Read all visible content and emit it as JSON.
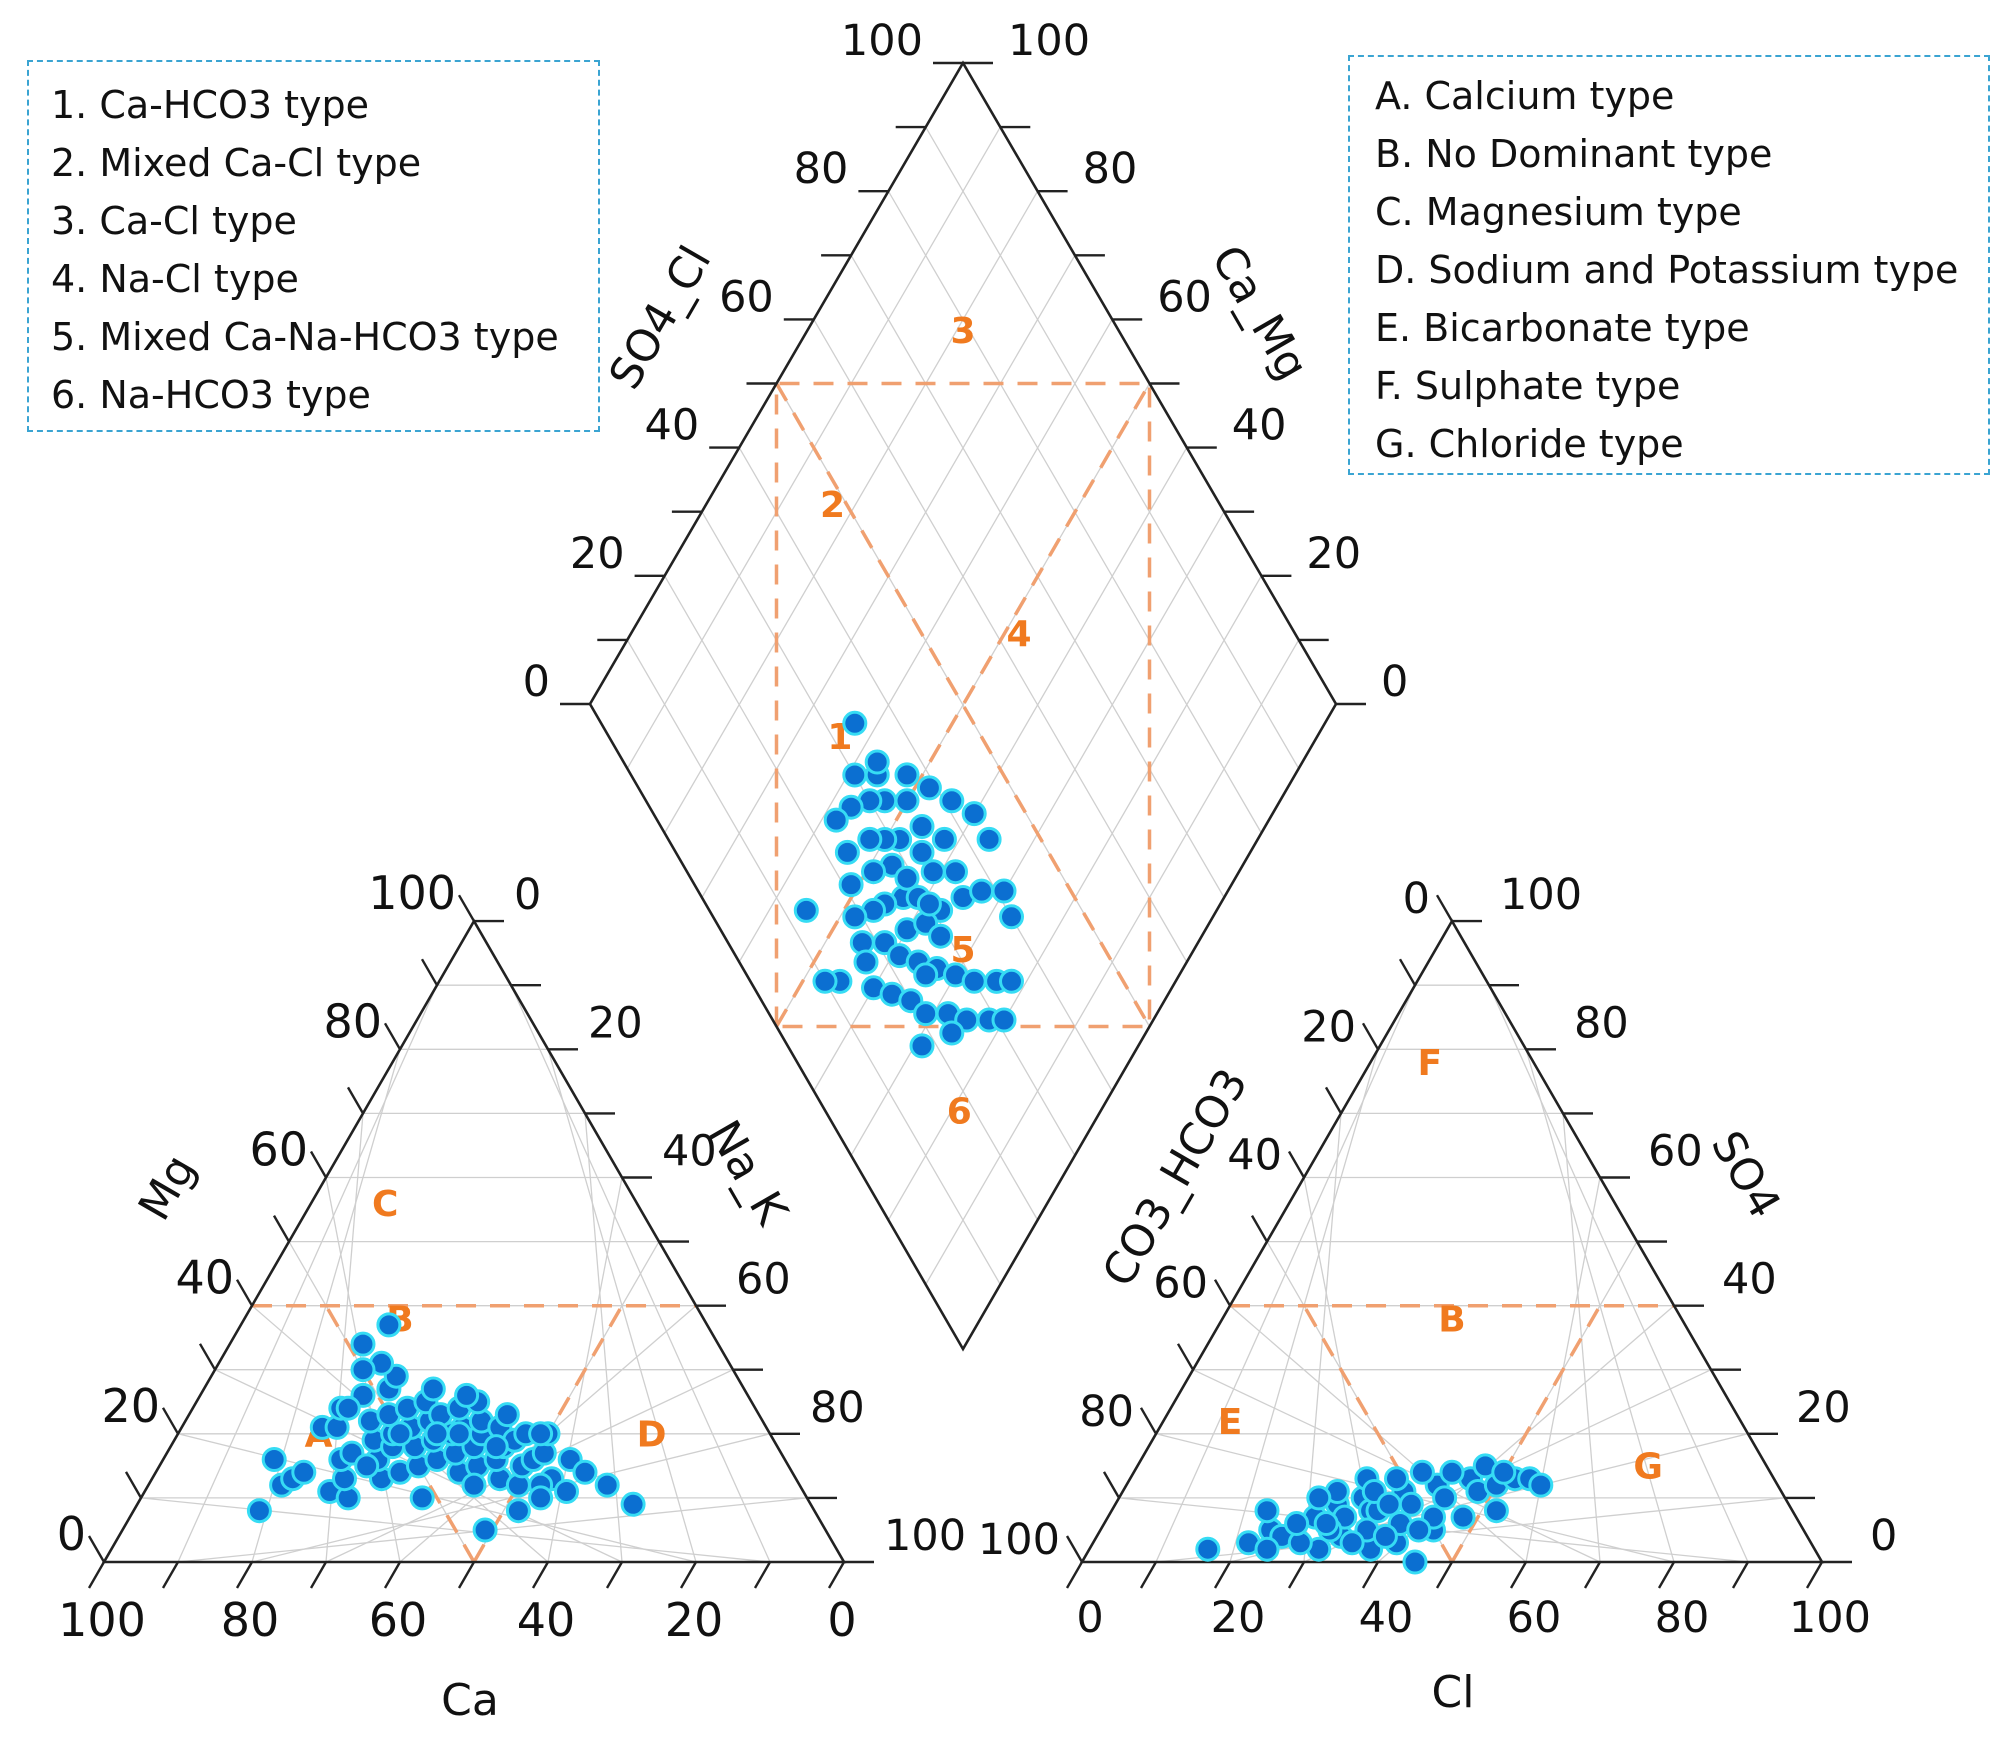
{
  "chart_data": {
    "type": "scatter",
    "subtype": "piper-diagram",
    "marker_color": "#0b6fd1",
    "marker_edge_color": "#36dcf4",
    "zone_line_color": "#f0a070",
    "zone_label_color": "#f07a1f",
    "legend_border_color": "#3aa4d2",
    "legend_hydrochemical": [
      "1. Ca-HCO3 type",
      "2. Mixed Ca-Cl type",
      "3. Ca-Cl type",
      "4. Na-Cl type",
      "5. Mixed Ca-Na-HCO3 type",
      "6. Na-HCO3 type"
    ],
    "legend_water_type": [
      "A. Calcium type",
      "B. No Dominant type",
      "C. Magnesium type",
      "D. Sodium and Potassium type",
      "E. Bicarbonate type",
      "F. Sulphate type",
      "G. Chloride type"
    ],
    "cation_triangle": {
      "axes": {
        "left": "Mg",
        "right": "Na_K",
        "bottom": "Ca"
      },
      "left_ticks": [
        "0",
        "20",
        "40",
        "60",
        "80",
        "100"
      ],
      "right_ticks": [
        "0",
        "20",
        "40",
        "60",
        "80",
        "100"
      ],
      "bottom_ticks": [
        "100",
        "80",
        "60",
        "40",
        "20",
        "0"
      ],
      "zone_labels": [
        "A",
        "B",
        "C",
        "D"
      ],
      "points": [
        [
          75,
          8
        ],
        [
          70,
          12
        ],
        [
          69,
          16
        ],
        [
          68,
          13
        ],
        [
          66,
          14
        ],
        [
          64,
          11
        ],
        [
          62,
          10
        ],
        [
          61,
          13
        ],
        [
          60,
          16
        ],
        [
          60,
          21
        ],
        [
          58,
          17
        ],
        [
          58,
          21
        ],
        [
          56,
          24
        ],
        [
          56,
          13
        ],
        [
          55,
          16
        ],
        [
          54,
          19
        ],
        [
          53,
          22
        ],
        [
          53,
          14
        ],
        [
          52,
          18
        ],
        [
          52,
          26
        ],
        [
          51,
          20
        ],
        [
          50,
          23
        ],
        [
          50,
          15
        ],
        [
          49,
          18
        ],
        [
          48,
          21
        ],
        [
          48,
          27
        ],
        [
          47,
          24
        ],
        [
          47,
          16
        ],
        [
          46,
          19
        ],
        [
          46,
          29
        ],
        [
          45,
          22
        ],
        [
          45,
          14
        ],
        [
          44,
          25
        ],
        [
          44,
          17
        ],
        [
          43,
          20
        ],
        [
          43,
          23
        ],
        [
          42,
          15
        ],
        [
          42,
          27
        ],
        [
          41,
          18
        ],
        [
          41,
          21
        ],
        [
          40,
          24
        ],
        [
          40,
          13
        ],
        [
          39,
          16
        ],
        [
          39,
          20
        ],
        [
          38,
          22
        ],
        [
          38,
          12
        ],
        [
          37,
          18
        ],
        [
          37,
          25
        ],
        [
          36,
          15
        ],
        [
          36,
          21
        ],
        [
          35,
          19
        ],
        [
          34,
          16
        ],
        [
          34,
          23
        ],
        [
          33,
          13
        ],
        [
          33,
          20
        ],
        [
          32,
          17
        ],
        [
          32,
          11
        ],
        [
          30,
          20
        ],
        [
          29,
          16
        ],
        [
          28,
          14
        ],
        [
          26,
          12
        ],
        [
          24,
          9
        ],
        [
          48,
          34
        ],
        [
          47,
          31
        ],
        [
          43,
          37
        ],
        [
          50,
          30
        ],
        [
          55,
          24
        ],
        [
          45,
          20
        ],
        [
          50,
          20
        ],
        [
          42,
          20
        ],
        [
          38,
          18
        ],
        [
          44,
          12
        ],
        [
          35,
          12
        ],
        [
          52,
          10
        ],
        [
          46,
          5
        ],
        [
          40,
          8
        ],
        [
          38,
          26
        ],
        [
          31,
          20
        ],
        [
          36,
          10
        ],
        [
          57,
          15
        ]
      ]
    },
    "anion_triangle": {
      "axes": {
        "left": "CO3_HCO3",
        "right": "SO4",
        "bottom": "Cl"
      },
      "left_ticks": [
        "100",
        "80",
        "60",
        "40",
        "20",
        "0"
      ],
      "right_ticks": [
        "0",
        "20",
        "40",
        "60",
        "80",
        "100"
      ],
      "bottom_ticks": [
        "0",
        "20",
        "40",
        "60",
        "80",
        "100"
      ],
      "zone_labels": [
        "E",
        "F",
        "G",
        "B"
      ],
      "points": [
        [
          16,
          2
        ],
        [
          21,
          3
        ],
        [
          23,
          5
        ],
        [
          21,
          8
        ],
        [
          25,
          4
        ],
        [
          28,
          7
        ],
        [
          30,
          9
        ],
        [
          33,
          10
        ],
        [
          35,
          8
        ],
        [
          38,
          11
        ],
        [
          40,
          9
        ],
        [
          42,
          12
        ],
        [
          44,
          10
        ],
        [
          46,
          13
        ],
        [
          48,
          11
        ],
        [
          50,
          12
        ],
        [
          52,
          13
        ],
        [
          45,
          5
        ],
        [
          41,
          3
        ],
        [
          38,
          2
        ],
        [
          36,
          5
        ],
        [
          33,
          4
        ],
        [
          31,
          2
        ],
        [
          28,
          3
        ],
        [
          26,
          6
        ],
        [
          24,
          2
        ],
        [
          29,
          11
        ],
        [
          32,
          13
        ],
        [
          36,
          13
        ],
        [
          39,
          14
        ],
        [
          43,
          14
        ],
        [
          47,
          15
        ],
        [
          50,
          14
        ],
        [
          54,
          13
        ],
        [
          56,
          12
        ],
        [
          52,
          8
        ],
        [
          48,
          7
        ],
        [
          44,
          7
        ],
        [
          40,
          6
        ],
        [
          36,
          8
        ],
        [
          32,
          7
        ],
        [
          27,
          10
        ],
        [
          31,
          5
        ],
        [
          35,
          3
        ],
        [
          39,
          4
        ],
        [
          43,
          5
        ],
        [
          45,
          0
        ],
        [
          34,
          11
        ],
        [
          37,
          9
        ],
        [
          30,
          6
        ]
      ]
    },
    "diamond": {
      "axes": {
        "left": "SO4_Cl",
        "right": "Ca_Mg"
      },
      "left_ticks": [
        "0",
        "20",
        "40",
        "60",
        "80",
        "100"
      ],
      "right_ticks": [
        "0",
        "20",
        "40",
        "60",
        "80",
        "100"
      ],
      "zone_labels": [
        "1",
        "2",
        "3",
        "4",
        "5",
        "6"
      ],
      "points": [
        [
          43,
          27
        ],
        [
          37,
          31
        ],
        [
          40,
          25
        ],
        [
          45,
          24
        ],
        [
          47,
          28
        ],
        [
          41,
          33
        ],
        [
          38,
          28
        ],
        [
          35,
          35
        ],
        [
          33,
          38
        ],
        [
          30,
          41
        ],
        [
          27,
          40
        ],
        [
          42,
          37
        ],
        [
          44,
          33
        ],
        [
          48,
          31
        ],
        [
          50,
          29
        ],
        [
          52,
          27
        ],
        [
          46,
          22
        ],
        [
          42,
          21
        ],
        [
          39,
          22
        ],
        [
          36,
          24
        ],
        [
          33,
          26
        ],
        [
          30,
          28
        ],
        [
          27,
          30
        ],
        [
          24,
          33
        ],
        [
          22,
          35
        ],
        [
          50,
          35
        ],
        [
          53,
          32
        ],
        [
          55,
          30
        ],
        [
          57,
          27
        ],
        [
          58,
          24
        ],
        [
          54,
          23
        ],
        [
          51,
          21
        ],
        [
          48,
          19
        ],
        [
          45,
          18
        ],
        [
          40,
          16
        ],
        [
          37,
          18
        ],
        [
          34,
          20
        ],
        [
          31,
          21
        ],
        [
          28,
          24
        ],
        [
          25,
          26
        ],
        [
          22,
          29
        ],
        [
          20,
          31
        ],
        [
          59,
          30
        ],
        [
          56,
          33
        ],
        [
          52,
          37
        ],
        [
          48,
          39
        ],
        [
          44,
          41
        ],
        [
          40,
          43
        ],
        [
          36,
          43
        ],
        [
          45,
          12
        ],
        [
          47,
          10
        ],
        [
          34,
          24
        ],
        [
          38,
          36
        ],
        [
          41,
          29
        ],
        [
          29,
          18
        ],
        [
          26,
          23
        ],
        [
          44,
          29
        ],
        [
          49,
          25
        ],
        [
          63,
          34
        ],
        [
          55,
          13
        ],
        [
          57,
          34
        ],
        [
          35,
          29
        ],
        [
          39,
          30
        ],
        [
          46,
          35
        ],
        [
          43,
          17
        ]
      ]
    }
  }
}
